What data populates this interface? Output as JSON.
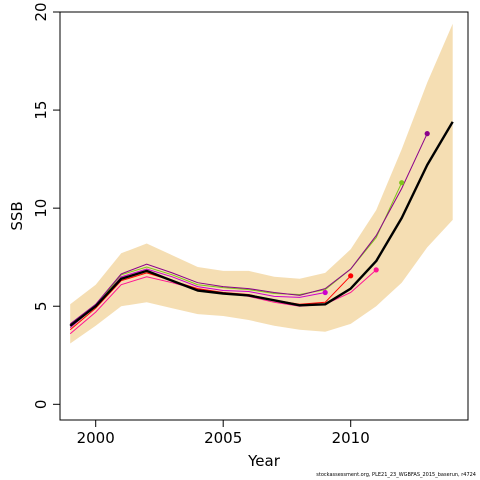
{
  "chart_data": {
    "type": "line",
    "title": "",
    "xlabel": "Year",
    "ylabel": "SSB",
    "xlim": [
      1998.6,
      2014.6
    ],
    "ylim": [
      -0.8,
      20.0
    ],
    "x_ticks": [
      2000,
      2005,
      2010
    ],
    "y_ticks": [
      0,
      5,
      10,
      15,
      20
    ],
    "grid": false,
    "band": {
      "color": "#F5DEB3",
      "x": [
        1999,
        2000,
        2001,
        2002,
        2003,
        2004,
        2005,
        2006,
        2007,
        2008,
        2009,
        2010,
        2011,
        2012,
        2013,
        2014
      ],
      "lower": [
        3.1,
        4.0,
        5.0,
        5.2,
        4.9,
        4.6,
        4.5,
        4.3,
        4.0,
        3.8,
        3.7,
        4.1,
        5.0,
        6.2,
        8.0,
        9.4
      ],
      "upper": [
        5.1,
        6.1,
        7.7,
        8.2,
        7.6,
        7.0,
        6.8,
        6.8,
        6.5,
        6.4,
        6.7,
        7.9,
        9.9,
        13.0,
        16.4,
        19.4
      ]
    },
    "main": {
      "color": "#000000",
      "x": [
        1999,
        2000,
        2001,
        2002,
        2003,
        2004,
        2005,
        2006,
        2007,
        2008,
        2009,
        2010,
        2011,
        2012,
        2013,
        2014
      ],
      "values": [
        4.0,
        5.0,
        6.4,
        6.8,
        6.3,
        5.8,
        5.65,
        5.55,
        5.3,
        5.05,
        5.1,
        5.9,
        7.3,
        9.5,
        12.2,
        14.4
      ]
    },
    "series": [
      {
        "color": "#FF1493",
        "x": [
          1999,
          2000,
          2001,
          2002,
          2003,
          2004,
          2005,
          2006,
          2007,
          2008,
          2009,
          2010,
          2011
        ],
        "values": [
          3.6,
          4.7,
          6.1,
          6.5,
          6.2,
          5.85,
          5.7,
          5.5,
          5.2,
          5.0,
          5.1,
          5.7,
          6.85
        ]
      },
      {
        "color": "#FF0000",
        "x": [
          1999,
          2000,
          2001,
          2002,
          2003,
          2004,
          2005,
          2006,
          2007,
          2008,
          2009,
          2010
        ],
        "values": [
          3.8,
          4.9,
          6.3,
          6.7,
          6.3,
          5.9,
          5.7,
          5.6,
          5.3,
          5.1,
          5.2,
          6.55
        ]
      },
      {
        "color": "#CD00CD",
        "x": [
          1999,
          2000,
          2001,
          2002,
          2003,
          2004,
          2005,
          2006,
          2007,
          2008,
          2009
        ],
        "values": [
          3.9,
          5.0,
          6.5,
          6.9,
          6.5,
          6.0,
          5.8,
          5.75,
          5.5,
          5.45,
          5.7
        ]
      },
      {
        "color": "#7FC31C",
        "x": [
          1999,
          2000,
          2001,
          2002,
          2003,
          2004,
          2005,
          2006,
          2007,
          2008,
          2009,
          2010,
          2011,
          2012
        ],
        "values": [
          4.0,
          5.0,
          6.6,
          7.0,
          6.6,
          6.1,
          5.95,
          5.85,
          5.65,
          5.6,
          5.85,
          6.9,
          8.5,
          11.3
        ]
      },
      {
        "color": "#8B008B",
        "x": [
          1999,
          2000,
          2001,
          2002,
          2003,
          2004,
          2005,
          2006,
          2007,
          2008,
          2009,
          2010,
          2011,
          2012,
          2013
        ],
        "values": [
          4.1,
          5.1,
          6.65,
          7.15,
          6.7,
          6.2,
          6.0,
          5.9,
          5.7,
          5.55,
          5.9,
          6.9,
          8.6,
          11.0,
          13.8
        ]
      }
    ]
  },
  "footnote": "stockassessment.org, PLE21_23_WGBFAS_2015_baserun, r4724"
}
